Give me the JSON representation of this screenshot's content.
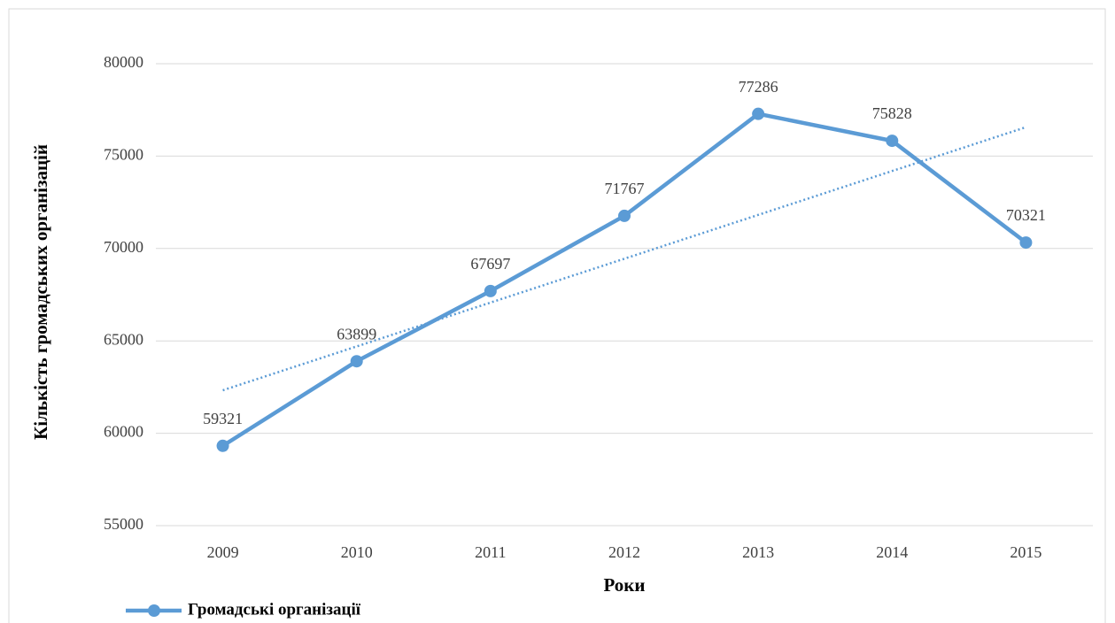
{
  "chart_data": {
    "type": "line",
    "categories": [
      "2009",
      "2010",
      "2011",
      "2012",
      "2013",
      "2014",
      "2015"
    ],
    "series": [
      {
        "name": "Громадські організації",
        "color": "#5b9bd5",
        "values": [
          59321,
          63899,
          67697,
          71767,
          77286,
          75828,
          70321
        ]
      }
    ],
    "ylim": [
      55000,
      80000
    ],
    "yticks": [
      55000,
      60000,
      65000,
      70000,
      75000,
      80000
    ],
    "ylabel": "Кількість громадських організацій",
    "xlabel": "Роки",
    "grid": true,
    "trendline": "linear",
    "data_labels": true,
    "legend": "bottom-left"
  }
}
